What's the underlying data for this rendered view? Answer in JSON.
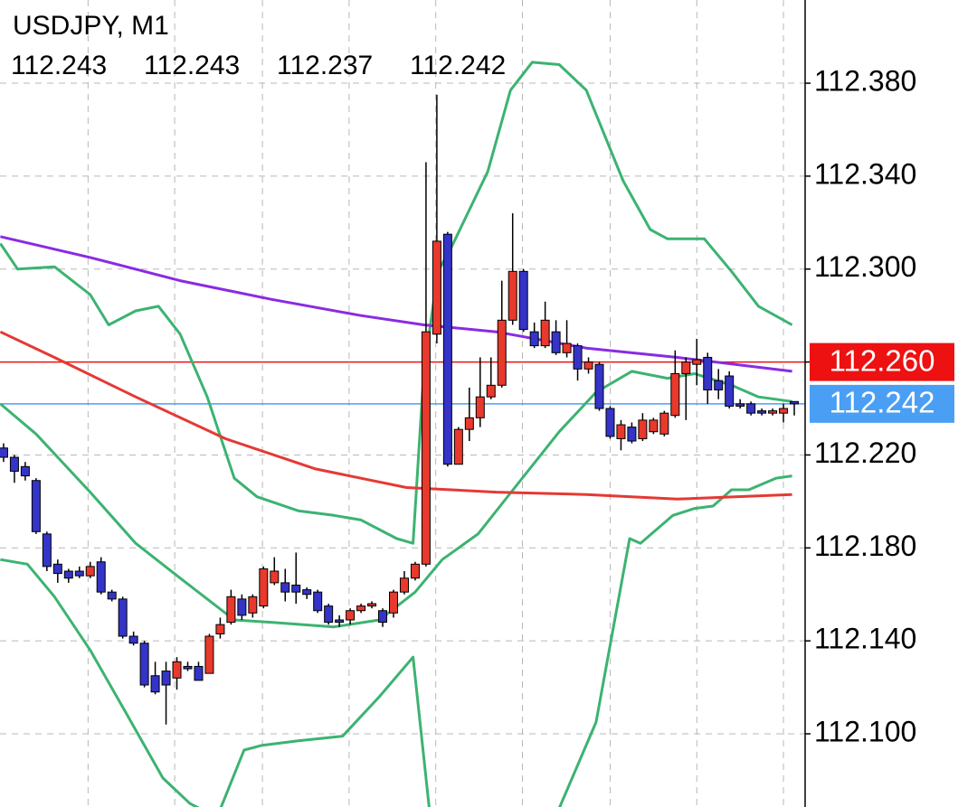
{
  "chart_data": {
    "type": "candlestick",
    "title": "USDJPY, M1",
    "ohlc": [
      112.243,
      112.243,
      112.237,
      112.242
    ],
    "open": [
      112.223,
      112.219,
      112.215,
      112.209,
      112.186,
      112.173,
      112.17,
      112.17,
      112.168,
      112.174,
      112.161,
      112.158,
      112.142,
      112.139,
      112.125,
      112.127,
      112.124,
      112.129,
      112.129,
      112.126,
      112.143,
      112.148,
      112.158,
      112.152,
      112.155,
      112.165,
      112.165,
      112.164,
      112.162,
      112.161,
      112.155,
      112.149,
      112.149,
      112.153,
      112.155,
      112.153,
      112.152,
      112.161,
      112.167,
      112.173,
      112.272,
      112.315,
      112.216,
      112.231,
      112.236,
      112.245,
      112.25,
      112.278,
      112.299,
      112.273,
      112.267,
      112.273,
      112.264,
      112.267,
      112.257,
      112.259,
      112.24,
      112.227,
      112.232,
      112.227,
      112.23,
      112.229,
      112.237,
      112.255,
      112.259,
      112.262,
      112.252,
      112.254,
      112.242,
      112.242,
      112.239,
      112.238,
      112.238,
      112.243
    ],
    "high": [
      112.225,
      112.22,
      112.217,
      112.21,
      112.187,
      112.175,
      112.171,
      112.172,
      112.174,
      112.176,
      112.162,
      112.159,
      112.144,
      112.14,
      112.131,
      112.131,
      112.133,
      112.131,
      112.131,
      112.143,
      112.15,
      112.162,
      112.16,
      112.16,
      112.172,
      112.176,
      112.171,
      112.178,
      112.163,
      112.162,
      112.156,
      112.151,
      112.154,
      112.156,
      112.157,
      112.154,
      112.162,
      112.17,
      112.174,
      112.346,
      112.375,
      112.316,
      112.232,
      112.249,
      112.262,
      112.262,
      112.295,
      112.324,
      112.3,
      112.277,
      112.286,
      112.278,
      112.278,
      112.268,
      112.262,
      112.26,
      112.241,
      112.235,
      112.234,
      112.238,
      112.236,
      112.239,
      112.265,
      112.262,
      112.27,
      112.264,
      112.257,
      112.256,
      112.244,
      112.243,
      112.24,
      112.24,
      112.242,
      112.243
    ],
    "low": [
      112.217,
      112.208,
      112.209,
      112.186,
      112.17,
      112.165,
      112.165,
      112.167,
      112.167,
      112.16,
      112.157,
      112.141,
      112.138,
      112.12,
      112.117,
      112.104,
      112.119,
      112.127,
      112.123,
      112.126,
      112.141,
      112.147,
      112.149,
      112.15,
      112.154,
      112.164,
      112.157,
      112.156,
      112.158,
      112.152,
      112.147,
      112.146,
      112.147,
      112.152,
      112.154,
      112.146,
      112.15,
      112.16,
      112.166,
      112.172,
      112.268,
      112.215,
      112.216,
      112.226,
      112.232,
      112.244,
      112.249,
      112.276,
      112.273,
      112.266,
      112.266,
      112.263,
      112.262,
      112.252,
      112.255,
      112.239,
      112.227,
      112.222,
      112.225,
      112.226,
      112.229,
      112.228,
      112.236,
      112.235,
      112.25,
      112.242,
      112.244,
      112.24,
      112.24,
      112.237,
      112.237,
      112.237,
      112.234,
      112.237
    ],
    "close": [
      112.219,
      112.213,
      112.211,
      112.187,
      112.172,
      112.169,
      112.167,
      112.168,
      112.172,
      112.161,
      112.158,
      112.142,
      112.139,
      112.121,
      112.118,
      112.121,
      112.131,
      112.128,
      112.123,
      112.142,
      112.147,
      112.159,
      112.151,
      112.159,
      112.171,
      112.17,
      112.161,
      112.161,
      112.16,
      112.153,
      112.148,
      112.148,
      112.153,
      112.155,
      112.156,
      112.148,
      112.161,
      112.167,
      112.173,
      112.273,
      112.312,
      112.216,
      112.231,
      112.236,
      112.245,
      112.25,
      112.278,
      112.299,
      112.274,
      112.267,
      112.278,
      112.264,
      112.268,
      112.257,
      112.26,
      112.24,
      112.228,
      112.233,
      112.226,
      112.235,
      112.235,
      112.238,
      112.255,
      112.26,
      112.261,
      112.248,
      112.248,
      112.241,
      112.241,
      112.238,
      112.238,
      112.239,
      112.24,
      112.242
    ],
    "up_color": "#e8392c",
    "down_color": "#3434c8",
    "lines": [
      {
        "color": "#3cb371",
        "x": [
          -0.3,
          1.3,
          4.7,
          8,
          9.7,
          12.2,
          14.3,
          16.3,
          18.8,
          21.3,
          23.4,
          27.2,
          30.5,
          33,
          36.3,
          37.8,
          38.8,
          40.1,
          41.3,
          44.7,
          46.8,
          48.8,
          51.3,
          53.8,
          57.2,
          59.7,
          61.3,
          64.7,
          67.2,
          69.7,
          72.8
        ],
        "values": [
          112.311,
          112.3,
          112.301,
          112.289,
          112.276,
          112.282,
          112.284,
          112.272,
          112.245,
          112.21,
          112.202,
          112.196,
          112.194,
          112.192,
          112.184,
          112.182,
          112.256,
          112.299,
          112.309,
          112.342,
          112.377,
          112.389,
          112.388,
          112.377,
          112.338,
          112.317,
          112.313,
          112.313,
          112.299,
          112.284,
          112.276
        ]
      },
      {
        "color": "#3cb371",
        "x": [
          -0.3,
          3,
          8,
          12.2,
          16.3,
          21.3,
          24.7,
          30.5,
          34.7,
          38,
          40.5,
          43.8,
          47.2,
          51.3,
          54.7,
          58,
          61.3,
          63.8,
          67.2,
          69.7,
          72.8
        ],
        "values": [
          112.242,
          112.229,
          112.204,
          112.182,
          112.167,
          112.149,
          112.148,
          112.146,
          112.149,
          112.161,
          112.175,
          112.186,
          112.206,
          112.23,
          112.247,
          112.256,
          112.253,
          112.255,
          112.25,
          112.245,
          112.243
        ]
      },
      {
        "color": "#3cb371",
        "x": [
          -0.3,
          2.2,
          4.7,
          8,
          11.3,
          14.7,
          17.2,
          19.7,
          22.2,
          23.8,
          27.2,
          31.3,
          34.7,
          37.8,
          39.3,
          45,
          51.3,
          54.7,
          57.8,
          58.8,
          61.8,
          63.8,
          65.5,
          67.2,
          68.8,
          71.3,
          72.8
        ],
        "values": [
          112.175,
          112.173,
          112.159,
          112.136,
          112.109,
          112.081,
          112.07,
          112.064,
          112.093,
          112.095,
          112.097,
          112.099,
          112.116,
          112.133,
          112.068,
          null,
          112.068,
          112.105,
          112.184,
          112.182,
          112.194,
          112.197,
          112.198,
          112.205,
          112.205,
          112.21,
          112.211
        ]
      },
      {
        "color": "#8a2be2",
        "x": [
          -0.3,
          8,
          16.3,
          24.7,
          33,
          38.8,
          45.5,
          53.8,
          62.2,
          72.8
        ],
        "values": [
          112.314,
          112.305,
          112.295,
          112.287,
          112.28,
          112.276,
          112.273,
          112.266,
          112.262,
          112.256
        ]
      },
      {
        "color": "#e53935",
        "x": [
          -0.3,
          4.7,
          12.2,
          20.5,
          28.8,
          37.2,
          45.5,
          53.8,
          62.2,
          72.8
        ],
        "values": [
          112.273,
          112.262,
          112.245,
          112.227,
          112.214,
          112.206,
          112.204,
          112.203,
          112.201,
          112.203
        ]
      }
    ],
    "price_lines": [
      {
        "value": 112.26,
        "label": "112.260",
        "color": "#ee1111"
      },
      {
        "value": 112.242,
        "label": "112.242",
        "color": "#4a9ff5"
      }
    ],
    "xlim": [
      -0.33,
      74
    ],
    "xticks": [
      7.8,
      15.8,
      23.9,
      31.9,
      39.9,
      47.9,
      56.0,
      64.0,
      72.0
    ],
    "ylim": [
      112.0685,
      112.4158
    ],
    "yticks": [
      {
        "value": 112.38,
        "label": "112.380"
      },
      {
        "value": 112.34,
        "label": "112.340"
      },
      {
        "value": 112.3,
        "label": "112.300"
      },
      {
        "value": 112.26,
        "label": "112.260"
      },
      {
        "value": 112.22,
        "label": "112.220"
      },
      {
        "value": 112.18,
        "label": "112.180"
      },
      {
        "value": 112.14,
        "label": "112.140"
      },
      {
        "value": 112.1,
        "label": "112.100"
      }
    ],
    "grid": true
  }
}
